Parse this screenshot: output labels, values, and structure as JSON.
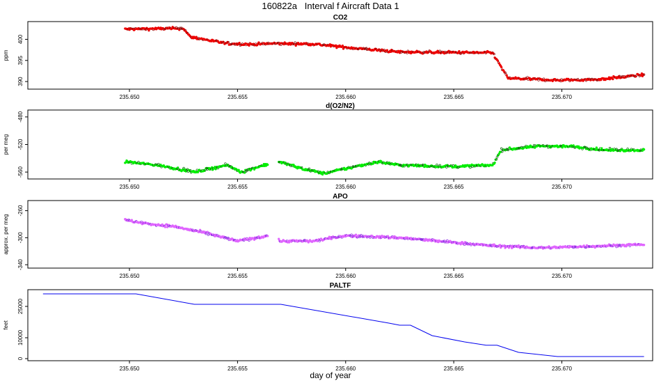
{
  "figure": {
    "title": "160822a   Interval f Aircraft Data 1",
    "xlabel": "day of year"
  },
  "chart_data": [
    {
      "type": "scatter",
      "title": "CO2",
      "ylabel": "ppm",
      "xlim": [
        235.6453,
        235.6742
      ],
      "ylim": [
        388.2,
        404.2
      ],
      "yticks": [
        390,
        395,
        400
      ],
      "xticks": [
        235.65,
        235.655,
        235.66,
        235.665,
        235.67
      ],
      "xtick_labels": [
        "235.650",
        "235.655",
        "235.660",
        "235.665",
        "235.670"
      ],
      "x_start": 235.6498,
      "x_end": 235.6738,
      "colors": {
        "main": "#ee0000",
        "secondary": "#8b0000"
      },
      "segments": [
        [
          235.6498,
          402.4
        ],
        [
          235.6525,
          402.6
        ],
        [
          235.6528,
          400.6
        ],
        [
          235.6545,
          399.0
        ],
        [
          235.6556,
          398.8
        ],
        [
          235.6566,
          399.0
        ],
        [
          235.6585,
          398.9
        ],
        [
          235.6602,
          398.0
        ],
        [
          235.6625,
          397.0
        ],
        [
          235.6668,
          396.8
        ],
        [
          235.6675,
          390.8
        ],
        [
          235.6698,
          390.3
        ],
        [
          235.6717,
          390.5
        ],
        [
          235.6738,
          391.6
        ]
      ],
      "gaps": []
    },
    {
      "type": "scatter",
      "title": "d(O2/N2)",
      "ylabel": "per meg",
      "xlim": [
        235.6453,
        235.6742
      ],
      "ylim": [
        -570,
        -470
      ],
      "yticks": [
        -560,
        -520,
        -480
      ],
      "xticks": [
        235.65,
        235.655,
        235.66,
        235.665,
        235.67
      ],
      "xtick_labels": [
        "235.650",
        "235.655",
        "235.660",
        "235.665",
        "235.670"
      ],
      "x_start": 235.6498,
      "x_end": 235.6738,
      "colors": {
        "main": "#00ee00",
        "secondary": "#006400"
      },
      "segments": [
        [
          235.6498,
          -545
        ],
        [
          235.6513,
          -550
        ],
        [
          235.6522,
          -555
        ],
        [
          235.653,
          -560
        ],
        [
          235.6545,
          -550
        ],
        [
          235.6552,
          -560
        ],
        [
          235.6562,
          -550
        ],
        [
          235.6569,
          -545
        ],
        [
          235.658,
          -555
        ],
        [
          235.659,
          -562
        ],
        [
          235.66,
          -555
        ],
        [
          235.6615,
          -545
        ],
        [
          235.6625,
          -550
        ],
        [
          235.665,
          -552
        ],
        [
          235.6668,
          -550
        ],
        [
          235.6672,
          -528
        ],
        [
          235.669,
          -522
        ],
        [
          235.6705,
          -523
        ],
        [
          235.672,
          -528
        ],
        [
          235.6738,
          -528
        ]
      ],
      "gaps": [
        [
          235.6564,
          235.6569
        ]
      ]
    },
    {
      "type": "scatter",
      "title": "APO",
      "ylabel": "approx. per meg",
      "xlim": [
        235.6453,
        235.6742
      ],
      "ylim": [
        -345,
        -245
      ],
      "yticks": [
        -340,
        -300,
        -260
      ],
      "xticks": [
        235.65,
        235.655,
        235.66,
        235.665,
        235.67
      ],
      "xtick_labels": [
        "235.650",
        "235.655",
        "235.660",
        "235.665",
        "235.670"
      ],
      "x_start": 235.6498,
      "x_end": 235.6738,
      "colors": {
        "main": "#e066ff",
        "secondary": "#8a2be2"
      },
      "segments": [
        [
          235.6498,
          -274
        ],
        [
          235.651,
          -280
        ],
        [
          235.652,
          -283
        ],
        [
          235.6535,
          -293
        ],
        [
          235.655,
          -305
        ],
        [
          235.6564,
          -297
        ],
        [
          235.657,
          -305
        ],
        [
          235.6585,
          -305
        ],
        [
          235.66,
          -297
        ],
        [
          235.6625,
          -300
        ],
        [
          235.665,
          -307
        ],
        [
          235.6668,
          -312
        ],
        [
          235.669,
          -315
        ],
        [
          235.672,
          -312
        ],
        [
          235.6738,
          -310
        ]
      ],
      "gaps": [
        [
          235.6564,
          235.6569
        ]
      ]
    },
    {
      "type": "line",
      "title": "PALTF",
      "ylabel": "feet",
      "xlim": [
        235.6453,
        235.6742
      ],
      "ylim": [
        -1000,
        33000
      ],
      "yticks": [
        0,
        10000,
        25000
      ],
      "xticks": [
        235.65,
        235.655,
        235.66,
        235.665,
        235.67
      ],
      "xtick_labels": [
        "235.650",
        "235.655",
        "235.660",
        "235.665",
        "235.670"
      ],
      "color": "#0000ee",
      "x": [
        235.646,
        235.6503,
        235.653,
        235.657,
        235.662,
        235.6625,
        235.663,
        235.664,
        235.6655,
        235.6665,
        235.667,
        235.668,
        235.6698,
        235.6738
      ],
      "y": [
        31000,
        31000,
        26000,
        26000,
        17000,
        16000,
        16000,
        11000,
        8000,
        6400,
        6400,
        3000,
        1000,
        1000
      ]
    }
  ]
}
